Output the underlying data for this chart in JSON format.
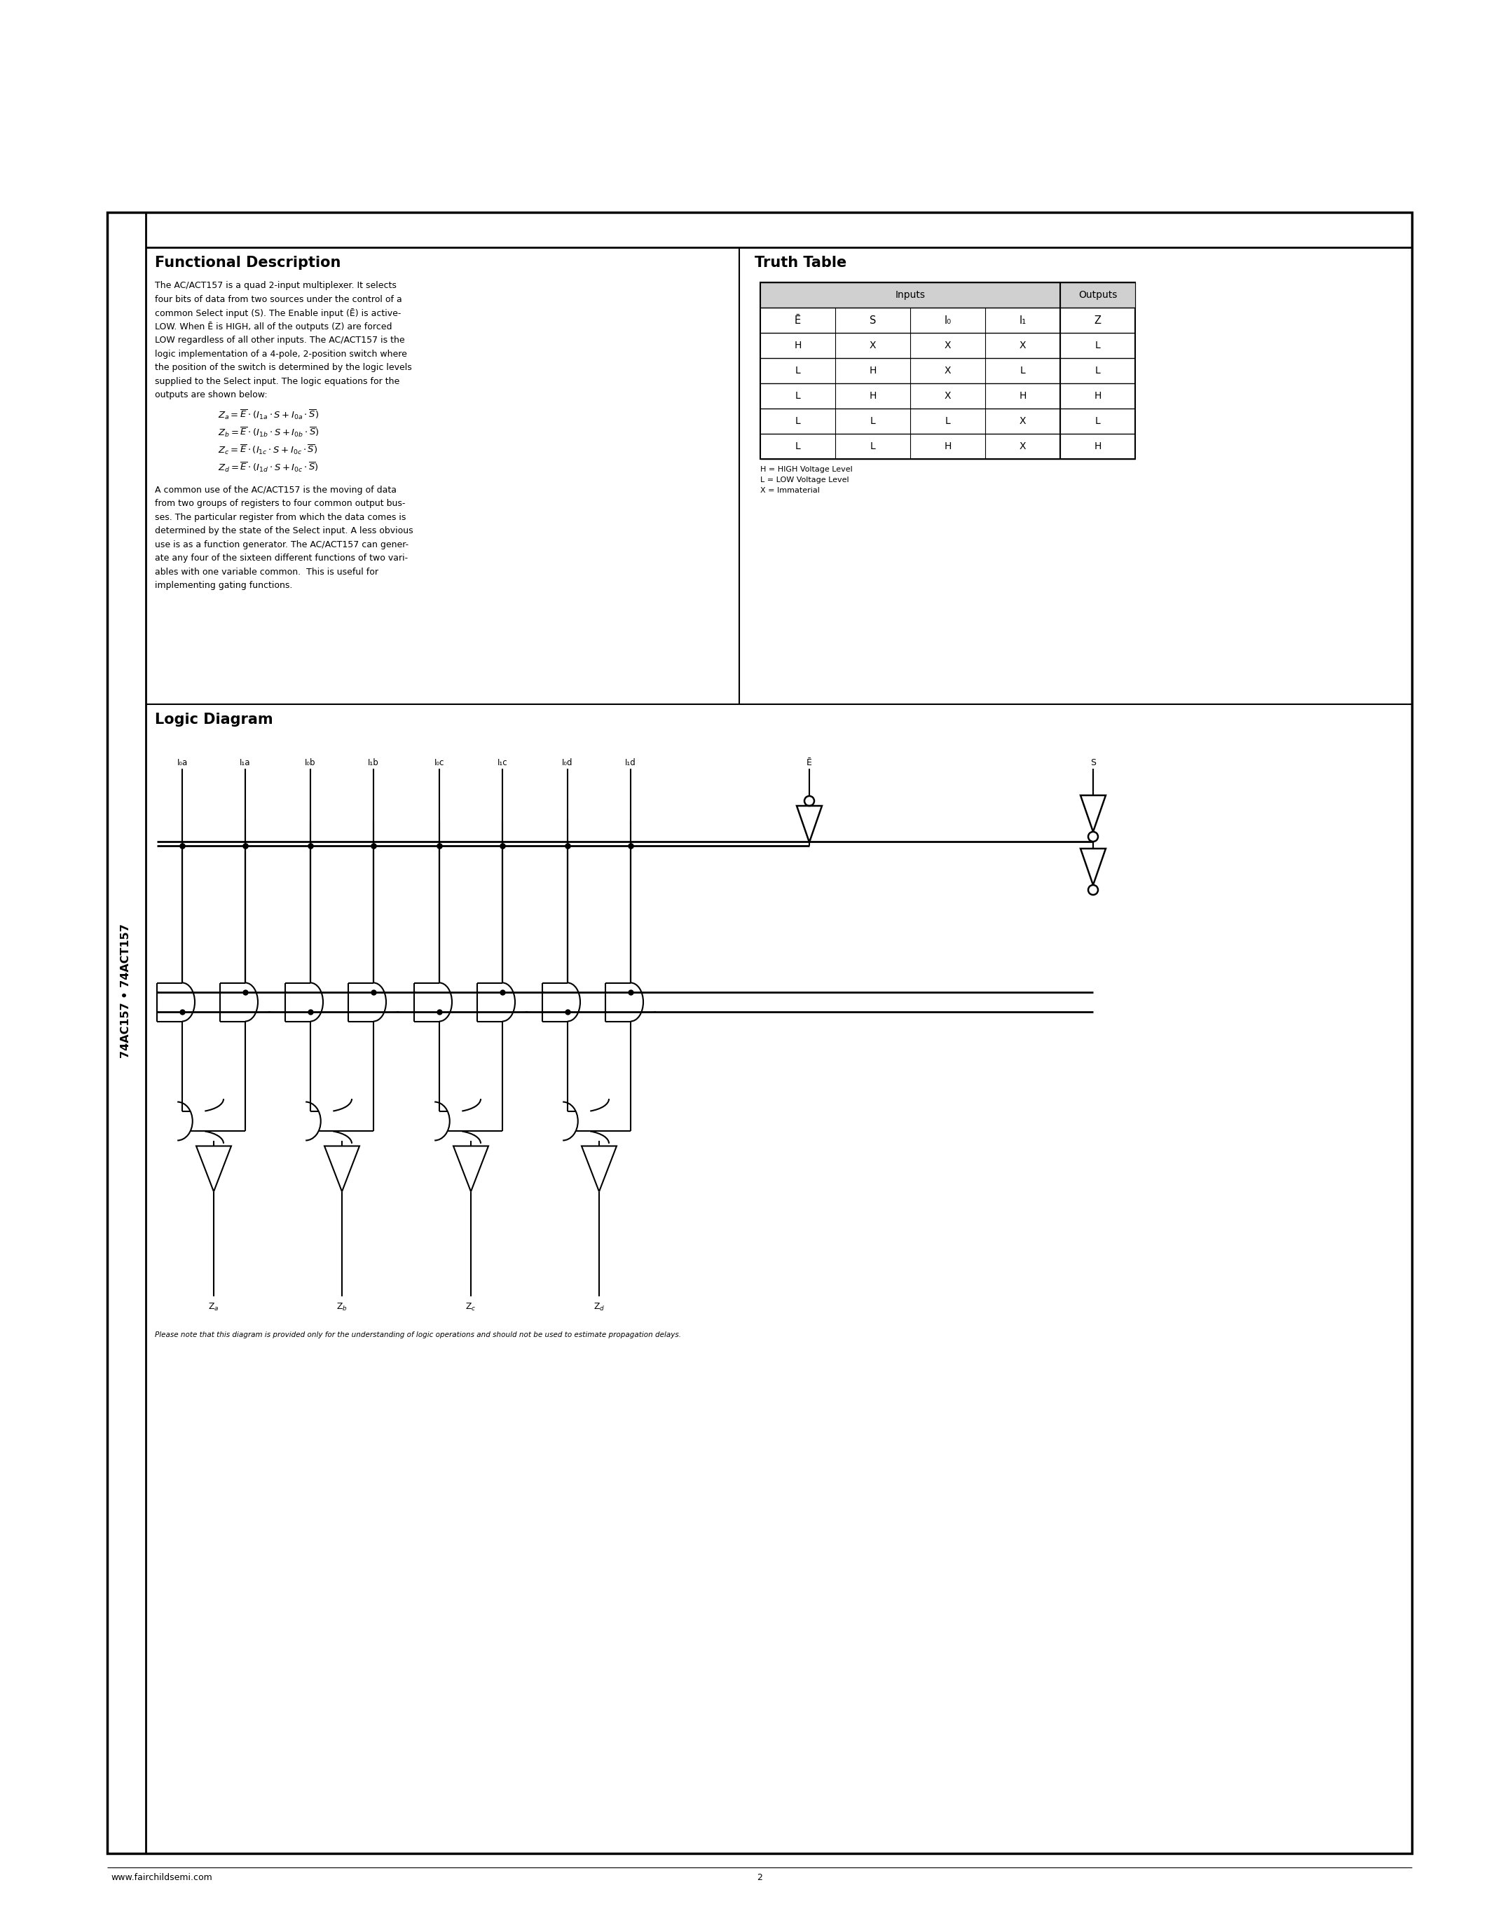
{
  "page_bg": "#ffffff",
  "sidebar_text": "74AC157 • 74ACT157",
  "section1_title": "Functional Description",
  "section1_body_lines": [
    "The AC/ACT157 is a quad 2-input multiplexer. It selects",
    "four bits of data from two sources under the control of a",
    "common Select input (S). The Enable input (Ē) is active-",
    "LOW. When Ē is HIGH, all of the outputs (Z) are forced",
    "LOW regardless of all other inputs. The AC/ACT157 is the",
    "logic implementation of a 4-pole, 2-position switch where",
    "the position of the switch is determined by the logic levels",
    "supplied to the Select input. The logic equations for the",
    "outputs are shown below:"
  ],
  "equations": [
    "Z_a = \\overline{E} \\cdot (I_{1a} \\cdot S + I_{0a} \\cdot \\overline{S})",
    "Z_b = \\overline{E} \\cdot (I_{1b} \\cdot S + I_{0b} \\cdot \\overline{S})",
    "Z_c = \\overline{E} \\cdot (I_{1c} \\cdot S + I_{0c} \\cdot \\overline{S})",
    "Z_d = \\overline{E} \\cdot (I_{1d} \\cdot S + I_{0c} \\cdot \\overline{S})"
  ],
  "para2_lines": [
    "A common use of the AC/ACT157 is the moving of data",
    "from two groups of registers to four common output bus-",
    "ses. The particular register from which the data comes is",
    "determined by the state of the Select input. A less obvious",
    "use is as a function generator. The AC/ACT157 can gener-",
    "ate any four of the sixteen different functions of two vari-",
    "ables with one variable common.  This is useful for",
    "implementing gating functions."
  ],
  "section2_title": "Truth Table",
  "tt_col_headers": [
    "Ē",
    "S",
    "I₀",
    "I₁",
    "Z"
  ],
  "tt_rows": [
    [
      "H",
      "X",
      "X",
      "X",
      "L"
    ],
    [
      "L",
      "H",
      "X",
      "L",
      "L"
    ],
    [
      "L",
      "H",
      "X",
      "H",
      "H"
    ],
    [
      "L",
      "L",
      "L",
      "X",
      "L"
    ],
    [
      "L",
      "L",
      "H",
      "X",
      "H"
    ]
  ],
  "tt_notes": [
    "H = HIGH Voltage Level",
    "L = LOW Voltage Level",
    "X = Immaterial"
  ],
  "section3_title": "Logic Diagram",
  "footer_left": "www.fairchildsemi.com",
  "footer_page": "2",
  "footer_note": "Please note that this diagram is provided only for the understanding of logic operations and should not be used to estimate propagation delays."
}
